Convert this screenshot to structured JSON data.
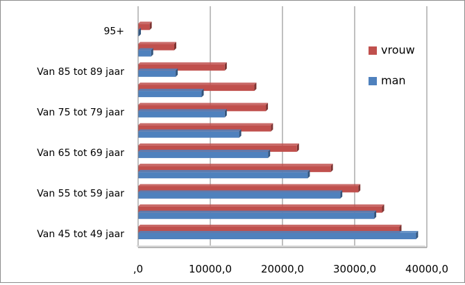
{
  "chart_data": {
    "type": "bar",
    "orientation": "horizontal",
    "title": "",
    "xlabel": "",
    "ylabel": "",
    "xlim": [
      0,
      40000
    ],
    "x_ticks": [
      {
        "value": 0,
        "label": ",0"
      },
      {
        "value": 10000,
        "label": "10000,0"
      },
      {
        "value": 20000,
        "label": "20000,0"
      },
      {
        "value": 30000,
        "label": "30000,0"
      },
      {
        "value": 40000,
        "label": "40000,0"
      }
    ],
    "grid": "vertical",
    "legend_position": "right",
    "categories": [
      "Van 45 tot 49 jaar",
      "",
      "Van 55 tot 59 jaar",
      "",
      "Van 65 tot 69 jaar",
      "",
      "Van 75 tot 79 jaar",
      "",
      "Van 85 tot 89 jaar",
      "",
      "95+"
    ],
    "series": [
      {
        "name": "man",
        "color": "#4f81bd",
        "values": [
          38500,
          32700,
          28000,
          23500,
          18000,
          14000,
          12000,
          8800,
          5200,
          1800,
          100
        ]
      },
      {
        "name": "vrouw",
        "color": "#c0504d",
        "values": [
          36200,
          33800,
          30500,
          26700,
          22000,
          18400,
          17700,
          16100,
          12000,
          5000,
          1600
        ]
      }
    ]
  }
}
